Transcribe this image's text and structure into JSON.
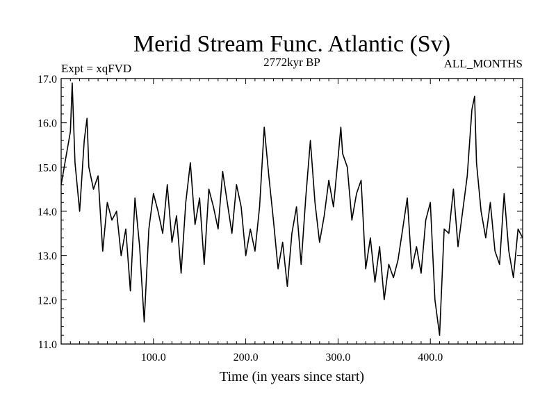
{
  "chart_data": {
    "type": "line",
    "title": "Merid Stream Func. Atlantic (Sv)",
    "subtitle_left": "Expt = xqFVD",
    "subtitle_center": "2772kyr BP",
    "subtitle_right": "ALL_MONTHS",
    "xlabel": "Time (in years since start)",
    "ylabel": "",
    "xlim": [
      0,
      500
    ],
    "ylim": [
      11.0,
      17.0
    ],
    "x_ticks": [
      {
        "value": 100,
        "label": "100.0"
      },
      {
        "value": 200,
        "label": "200.0"
      },
      {
        "value": 300,
        "label": "300.0"
      },
      {
        "value": 400,
        "label": "400.0"
      }
    ],
    "y_ticks": [
      {
        "value": 11,
        "label": "11.0"
      },
      {
        "value": 12,
        "label": "12.0"
      },
      {
        "value": 13,
        "label": "13.0"
      },
      {
        "value": 14,
        "label": "14.0"
      },
      {
        "value": 15,
        "label": "15.0"
      },
      {
        "value": 16,
        "label": "16.0"
      },
      {
        "value": 17,
        "label": "17.0"
      }
    ],
    "series": [
      {
        "name": "Merid Stream Func. Atlantic",
        "x": [
          0,
          5,
          10,
          12,
          15,
          20,
          25,
          28,
          30,
          35,
          40,
          45,
          50,
          55,
          60,
          65,
          70,
          75,
          80,
          85,
          90,
          95,
          100,
          105,
          110,
          115,
          120,
          125,
          130,
          135,
          140,
          145,
          150,
          155,
          160,
          165,
          170,
          175,
          180,
          185,
          190,
          195,
          200,
          205,
          210,
          215,
          220,
          225,
          230,
          235,
          240,
          245,
          250,
          255,
          260,
          265,
          270,
          275,
          280,
          285,
          290,
          295,
          300,
          303,
          305,
          310,
          315,
          320,
          325,
          330,
          335,
          340,
          345,
          350,
          355,
          360,
          365,
          370,
          375,
          380,
          385,
          390,
          395,
          400,
          405,
          410,
          415,
          420,
          425,
          430,
          435,
          440,
          445,
          448,
          450,
          455,
          460,
          465,
          470,
          475,
          480,
          485,
          490,
          495,
          500
        ],
        "values": [
          14.6,
          15.2,
          15.8,
          16.9,
          15.1,
          14.0,
          15.6,
          16.1,
          15.0,
          14.5,
          14.8,
          13.1,
          14.2,
          13.8,
          14.0,
          13.0,
          13.6,
          12.2,
          14.3,
          13.2,
          11.5,
          13.6,
          14.4,
          14.0,
          13.5,
          14.6,
          13.3,
          13.9,
          12.6,
          14.2,
          15.1,
          13.7,
          14.3,
          12.8,
          14.5,
          14.1,
          13.6,
          14.9,
          14.2,
          13.5,
          14.6,
          14.1,
          13.0,
          13.6,
          13.1,
          14.1,
          15.9,
          14.8,
          13.8,
          12.7,
          13.3,
          12.3,
          13.5,
          14.1,
          12.8,
          14.3,
          15.6,
          14.2,
          13.3,
          13.9,
          14.7,
          14.1,
          15.2,
          15.9,
          15.3,
          15.0,
          13.8,
          14.4,
          14.7,
          12.7,
          13.4,
          12.4,
          13.2,
          12.0,
          12.8,
          12.5,
          12.9,
          13.6,
          14.3,
          12.7,
          13.2,
          12.6,
          13.8,
          14.2,
          12.0,
          11.2,
          13.6,
          13.5,
          14.5,
          13.2,
          14.0,
          14.8,
          16.3,
          16.6,
          15.1,
          14.0,
          13.4,
          14.2,
          13.1,
          12.8,
          14.4,
          13.1,
          12.5,
          13.6,
          13.4
        ]
      }
    ]
  }
}
